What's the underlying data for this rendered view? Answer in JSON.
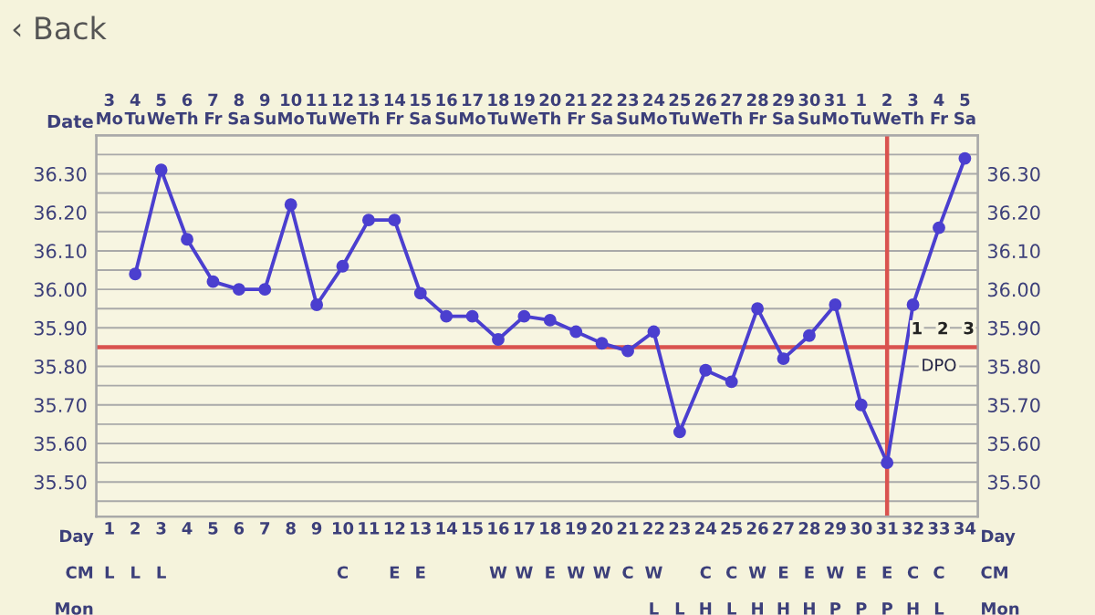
{
  "chart_data": {
    "type": "line",
    "categories": [
      "3\nMo",
      "4\nTu",
      "5\nWe",
      "6\nTh",
      "7\nFr",
      "8\nSa",
      "9\nSu",
      "10\nMo",
      "11\nTu",
      "12\nWe",
      "13\nTh",
      "14\nFr",
      "15\nSa",
      "16\nSu",
      "17\nMo",
      "18\nTu",
      "19\nWe",
      "20\nTh",
      "21\nFr",
      "22\nSa",
      "23\nSu",
      "24\nMo",
      "25\nTu",
      "26\nWe",
      "27\nTh",
      "28\nFr",
      "29\nSa",
      "30\nSu",
      "31\nMo",
      "1\nTu",
      "2\nWe",
      "3\nTh",
      "4\nFr",
      "5\nSa"
    ],
    "series": [
      {
        "color": "#4b3fcf",
        "values": [
          null,
          36.04,
          36.31,
          36.13,
          36.02,
          36.0,
          36.0,
          36.22,
          35.96,
          36.06,
          36.18,
          36.18,
          35.99,
          35.93,
          35.93,
          35.87,
          35.93,
          35.92,
          35.89,
          35.86,
          35.84,
          35.89,
          35.63,
          35.79,
          35.76,
          35.95,
          35.82,
          35.88,
          35.96,
          35.7,
          35.55,
          35.96,
          36.16,
          36.34
        ]
      }
    ],
    "xlabel": "Date",
    "x2label": "Day",
    "x2lim": [
      0.5,
      34.5
    ],
    "x2ticks": [
      1,
      2,
      3,
      4,
      5,
      6,
      7,
      8,
      9,
      10,
      11,
      12,
      13,
      14,
      15,
      16,
      17,
      18,
      19,
      20,
      21,
      22,
      23,
      24,
      25,
      26,
      27,
      28,
      29,
      30,
      31,
      32,
      33,
      34
    ],
    "ylim": [
      35.41,
      36.4
    ],
    "yticks": [
      {
        "value": 35.45,
        "label": null
      },
      {
        "value": 35.5,
        "label": "35.50"
      },
      {
        "value": 35.55,
        "label": null
      },
      {
        "value": 35.6,
        "label": "35.60"
      },
      {
        "value": 35.65,
        "label": null
      },
      {
        "value": 35.7,
        "label": "35.70"
      },
      {
        "value": 35.75,
        "label": null
      },
      {
        "value": 35.8,
        "label": "35.80"
      },
      {
        "value": 35.9,
        "label": "35.90"
      },
      {
        "value": 35.95,
        "label": null
      },
      {
        "value": 36.0,
        "label": "36.00"
      },
      {
        "value": 36.05,
        "label": null
      },
      {
        "value": 36.1,
        "label": "36.10"
      },
      {
        "value": 36.15,
        "label": null
      },
      {
        "value": 36.2,
        "label": "36.20"
      },
      {
        "value": 36.25,
        "label": null
      },
      {
        "value": 36.3,
        "label": "36.30"
      },
      {
        "value": 36.35,
        "label": null
      }
    ],
    "y2lim": [
      35.41,
      36.4
    ],
    "y2ticks": [
      {
        "value": 35.45,
        "label": null
      },
      {
        "value": 35.5,
        "label": "35.50"
      },
      {
        "value": 35.55,
        "label": null
      },
      {
        "value": 35.6,
        "label": "35.60"
      },
      {
        "value": 35.65,
        "label": null
      },
      {
        "value": 35.7,
        "label": "35.70"
      },
      {
        "value": 35.75,
        "label": null
      },
      {
        "value": 35.8,
        "label": "35.80"
      },
      {
        "value": 35.9,
        "label": "35.90"
      },
      {
        "value": 35.95,
        "label": null
      },
      {
        "value": 36.0,
        "label": "36.00"
      },
      {
        "value": 36.05,
        "label": null
      },
      {
        "value": 36.1,
        "label": "36.10"
      },
      {
        "value": 36.15,
        "label": null
      },
      {
        "value": 36.2,
        "label": "36.20"
      },
      {
        "value": 36.25,
        "label": null
      },
      {
        "value": 36.3,
        "label": "36.30"
      },
      {
        "value": 36.35,
        "label": null
      }
    ],
    "ref_lines": [
      {
        "axis": "y",
        "value": 35.85,
        "color": "#d9534f"
      },
      {
        "axis": "x",
        "value": "2\nWe",
        "color": "#d9534f"
      }
    ],
    "grid": true,
    "marker": "circle",
    "line_style": "solid",
    "annotations": [
      "‹ Back",
      "DPO",
      "1",
      "2",
      "3",
      "CM",
      "L",
      "L",
      "L",
      null,
      null,
      null,
      null,
      null,
      null,
      "C",
      null,
      "E",
      "E",
      null,
      null,
      "W",
      "W",
      "E",
      "W",
      "W",
      "C",
      "W",
      null,
      "C",
      "C",
      "W",
      "E",
      "E",
      "W",
      "E",
      "E",
      "C",
      "C",
      null,
      "Mon",
      null,
      null,
      null,
      null,
      null,
      null,
      null,
      null,
      null,
      null,
      null,
      null,
      null,
      null,
      null,
      null,
      null,
      null,
      null,
      null,
      null,
      "L",
      "L",
      "H",
      "L",
      "H",
      "H",
      "H",
      "P",
      "P",
      "P",
      "H",
      "L",
      null
    ]
  }
}
